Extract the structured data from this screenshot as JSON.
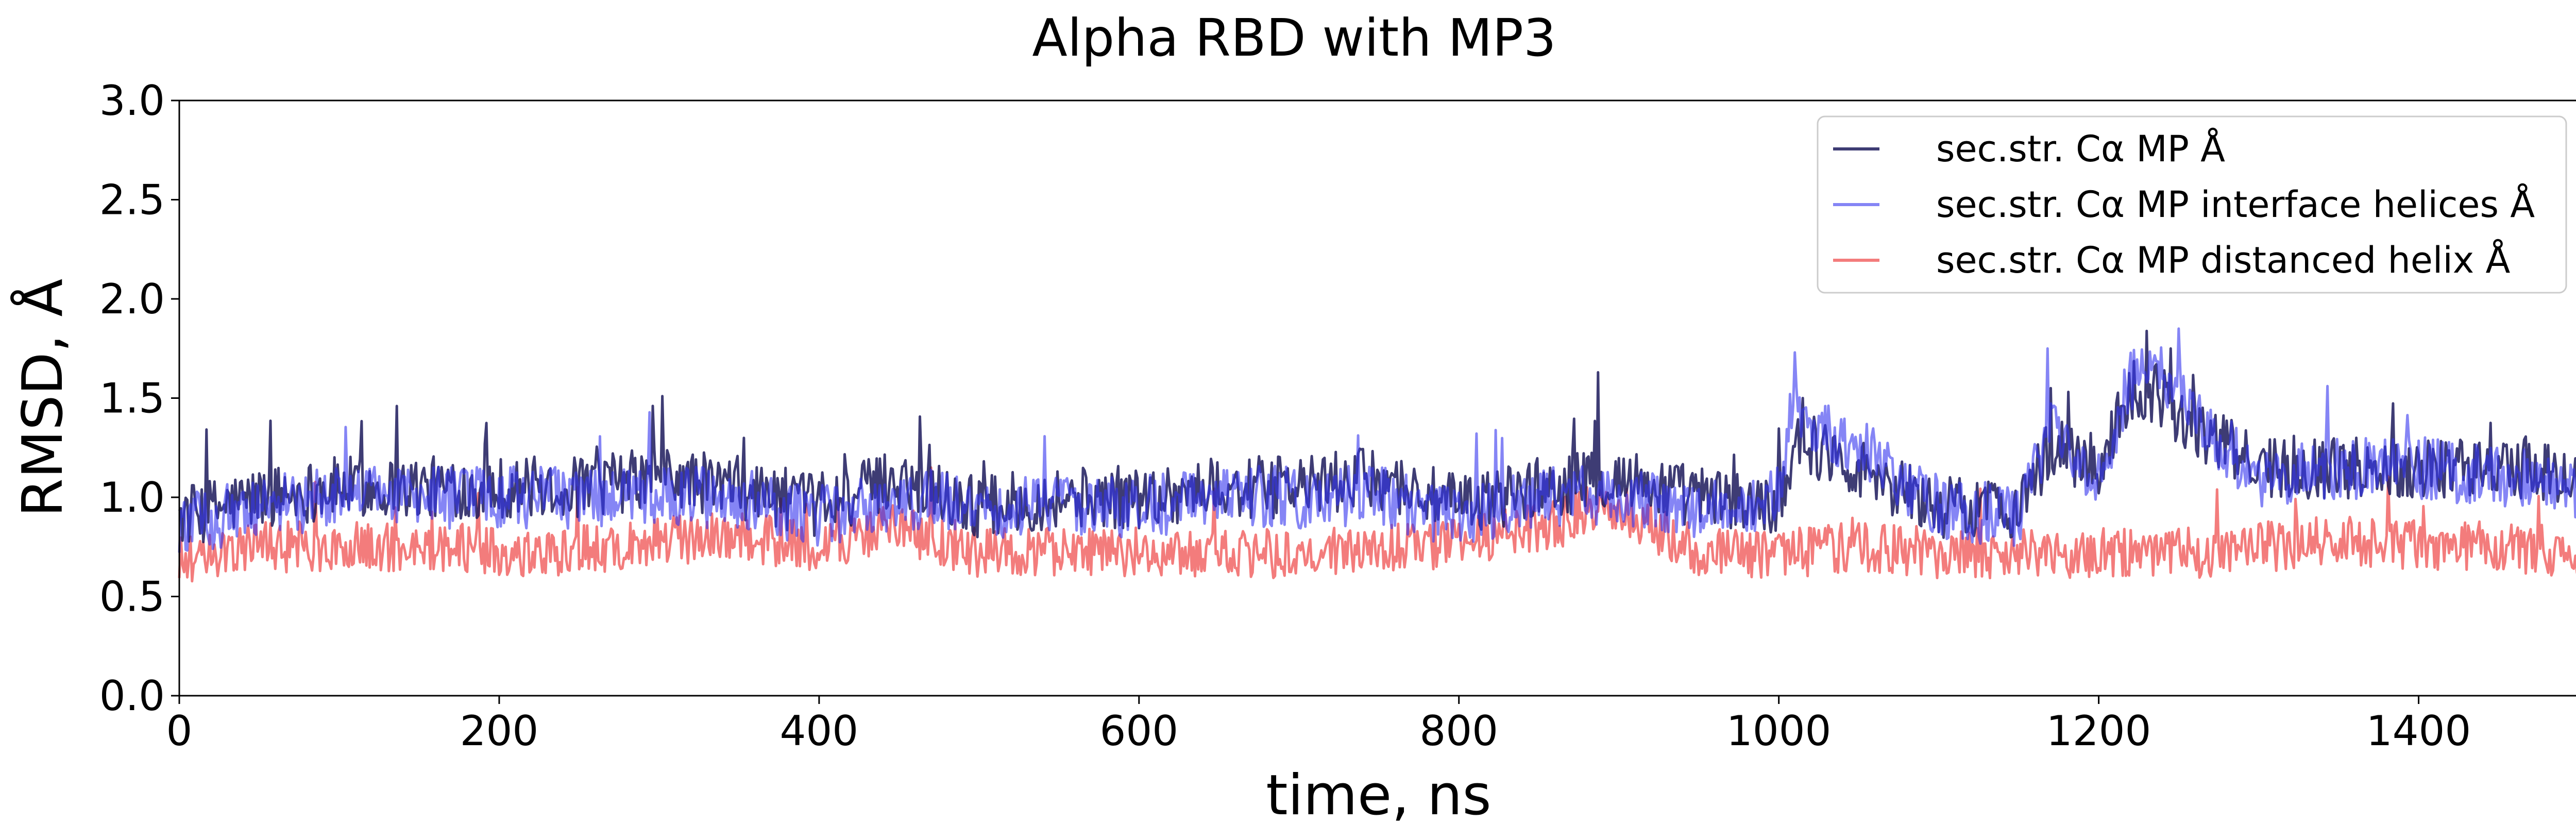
{
  "chart_data": {
    "type": "line",
    "title": "Alpha RBD with MP3",
    "xlabel": "time, ns",
    "ylabel": "RMSD, Å",
    "xlim": [
      0,
      1500
    ],
    "ylim": [
      0.0,
      3.0
    ],
    "x_ticks": [
      0,
      200,
      400,
      600,
      800,
      1000,
      1200,
      1400
    ],
    "y_ticks": [
      0.0,
      0.5,
      1.0,
      1.5,
      2.0,
      2.5,
      3.0
    ],
    "x_tick_labels": [
      "0",
      "200",
      "400",
      "600",
      "800",
      "1000",
      "1200",
      "1400"
    ],
    "y_tick_labels": [
      "0.0",
      "0.5",
      "1.0",
      "1.5",
      "2.0",
      "2.5",
      "3.0"
    ],
    "grid": false,
    "legend_position": "top-right",
    "series_x": [
      0,
      50,
      100,
      150,
      200,
      250,
      300,
      350,
      400,
      450,
      500,
      550,
      600,
      650,
      700,
      750,
      800,
      850,
      900,
      950,
      1000,
      1010,
      1050,
      1100,
      1150,
      1170,
      1200,
      1220,
      1240,
      1260,
      1300,
      1350,
      1400,
      1450,
      1500
    ],
    "series": [
      {
        "name": "sec.str. Cα MP Å",
        "color": "#1c1a5c",
        "opacity": 0.85,
        "values": [
          0.9,
          1.0,
          1.05,
          1.05,
          1.05,
          1.05,
          1.1,
          1.05,
          0.95,
          1.1,
          0.95,
          1.0,
          1.0,
          1.05,
          1.05,
          1.1,
          0.95,
          1.05,
          1.1,
          1.0,
          0.95,
          1.3,
          1.15,
          0.95,
          0.95,
          1.25,
          1.15,
          1.55,
          1.5,
          1.35,
          1.15,
          1.15,
          1.15,
          1.15,
          1.1
        ],
        "peaks": [
          [
            136,
            1.46
          ],
          [
            302,
            1.51
          ],
          [
            887,
            1.63
          ],
          [
            1015,
            1.5
          ],
          [
            1170,
            1.55
          ],
          [
            1245,
            1.75
          ]
        ]
      },
      {
        "name": "sec.str. Cα MP interface helices Å",
        "color": "#3333ee",
        "opacity": 0.6,
        "values": [
          0.85,
          0.95,
          1.0,
          1.0,
          1.0,
          1.0,
          1.0,
          1.0,
          0.9,
          1.0,
          0.95,
          0.95,
          0.95,
          1.0,
          1.0,
          1.0,
          0.9,
          1.0,
          1.0,
          0.95,
          1.0,
          1.4,
          1.25,
          0.95,
          0.9,
          1.35,
          1.1,
          1.6,
          1.6,
          1.4,
          1.1,
          1.15,
          1.15,
          1.1,
          1.05
        ],
        "peaks": [
          [
            1010,
            1.73
          ],
          [
            1168,
            1.75
          ],
          [
            1250,
            1.85
          ]
        ]
      },
      {
        "name": "sec.str. Cα MP distanced helix Å",
        "color": "#ee4444",
        "opacity": 0.7,
        "values": [
          0.68,
          0.75,
          0.75,
          0.75,
          0.72,
          0.73,
          0.78,
          0.8,
          0.75,
          0.85,
          0.72,
          0.72,
          0.72,
          0.72,
          0.72,
          0.73,
          0.78,
          0.85,
          0.95,
          0.72,
          0.72,
          0.72,
          0.75,
          0.72,
          0.72,
          0.72,
          0.72,
          0.72,
          0.72,
          0.72,
          0.75,
          0.78,
          0.76,
          0.75,
          0.72
        ],
        "peaks": [
          [
            470,
            1.15
          ],
          [
            880,
            1.05
          ]
        ]
      }
    ]
  }
}
